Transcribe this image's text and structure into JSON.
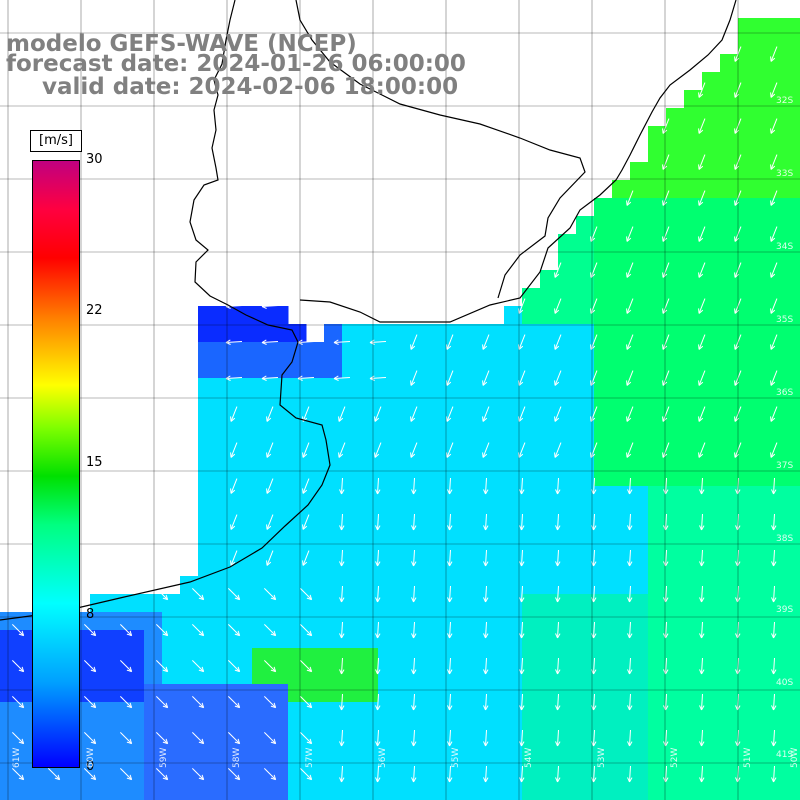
{
  "header": {
    "line1": "modelo GEFS-WAVE (NCEP)",
    "line2": "forecast date: 2024-01-26 06:00:00",
    "line3": "valid date: 2024-02-06 18:00:00"
  },
  "colorbar": {
    "unit": "[m/s]",
    "ticks": [
      "30",
      "22",
      "15",
      "8",
      "0"
    ],
    "colors": [
      "#0000ff",
      "#00a0ff",
      "#00ffff",
      "#00ff80",
      "#00e000",
      "#7fff00",
      "#ffff00",
      "#ff8000",
      "#ff0000",
      "#c00080"
    ]
  },
  "map": {
    "lat_labels": [
      "32S",
      "33S",
      "34S",
      "35S",
      "36S",
      "37S",
      "38S",
      "39S",
      "40S",
      "41S"
    ],
    "lon_labels": [
      "61W",
      "60W",
      "59W",
      "58W",
      "57W",
      "56W",
      "55W",
      "54W",
      "53W",
      "52W",
      "51W",
      "50W"
    ],
    "colors": {
      "land": "#ffffff",
      "grid": "#000000",
      "coast": "#000000",
      "arrows": "#ffffff",
      "deep_blue": "#0030ff",
      "cyan": "#00e8ff",
      "green": "#00ff60"
    }
  }
}
